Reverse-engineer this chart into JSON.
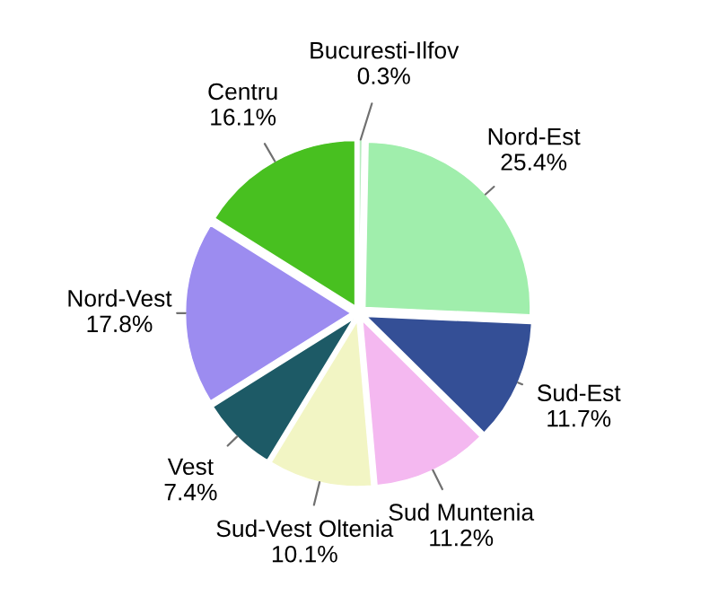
{
  "chart_data": {
    "type": "pie",
    "categories": [
      "Bucuresti-Ilfov",
      "Nord-Est",
      "Sud-Est",
      "Sud Muntenia",
      "Sud-Vest Oltenia",
      "Vest",
      "Nord-Vest",
      "Centru"
    ],
    "values": [
      0.3,
      25.4,
      11.7,
      11.2,
      10.1,
      7.4,
      17.8,
      16.1
    ],
    "value_labels": [
      "0.3%",
      "25.4%",
      "11.7%",
      "11.2%",
      "10.1%",
      "7.4%",
      "17.8%",
      "16.1%"
    ],
    "colors": [
      "#b8ecc0",
      "#a0eeac",
      "#344f96",
      "#f4b8f0",
      "#f2f5c4",
      "#1d5a66",
      "#9c8cf0",
      "#48c020"
    ]
  }
}
